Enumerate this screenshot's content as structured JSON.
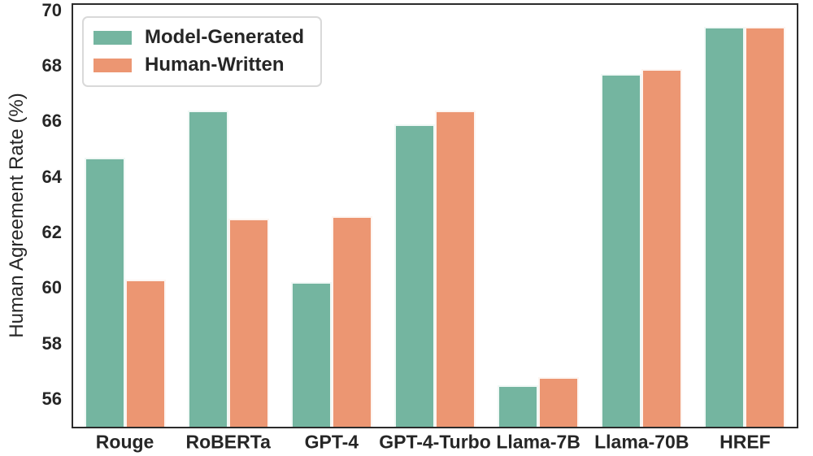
{
  "chart_data": {
    "type": "bar",
    "title": "",
    "xlabel": "",
    "ylabel": "Human Agreement Rate (%)",
    "ylim": [
      55,
      70.2
    ],
    "yticks": [
      56,
      58,
      60,
      62,
      64,
      66,
      68,
      70
    ],
    "categories": [
      "Rouge",
      "RoBERTa",
      "GPT-4",
      "GPT-4-Turbo",
      "Llama-7B",
      "Llama-70B",
      "HREF"
    ],
    "series": [
      {
        "name": "Model-Generated",
        "color": "#74B5A0",
        "values": [
          64.7,
          66.4,
          60.2,
          65.9,
          56.5,
          67.7,
          69.4
        ]
      },
      {
        "name": "Human-Written",
        "color": "#EC9672",
        "values": [
          60.3,
          62.5,
          62.6,
          66.4,
          56.8,
          67.9,
          69.4
        ]
      }
    ],
    "legend_position": "upper left",
    "grid": false
  },
  "style": {
    "text_color": "#262626",
    "spine_color": "#2B2B2B",
    "bar_edge_color": "#FFFFFF",
    "legend_border_color": "#D9D9D9",
    "background_color": "#FFFFFF"
  }
}
